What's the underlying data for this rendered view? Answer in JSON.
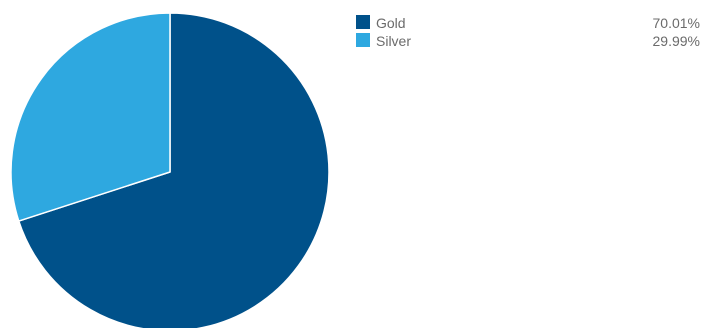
{
  "chart_data": {
    "type": "pie",
    "title": "",
    "legend_position": "top-right",
    "slices": [
      {
        "label": "Gold",
        "value": 70.01,
        "display": "70.01%",
        "color": "#00518a"
      },
      {
        "label": "Silver",
        "value": 29.99,
        "display": "29.99%",
        "color": "#2ea8e0"
      }
    ]
  }
}
